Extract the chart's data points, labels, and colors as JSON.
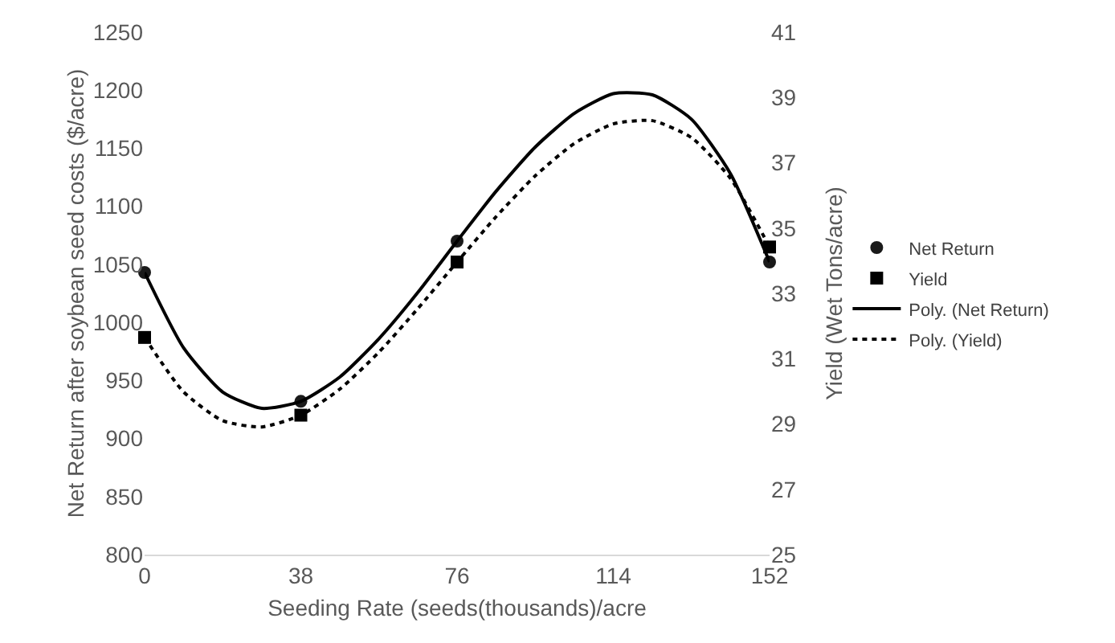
{
  "chart_data": {
    "type": "scatter",
    "xlabel": "Seeding Rate (seeds(thousands)/acre",
    "ylabel": "Net Return after soybean seed costs ($/acre)",
    "y2label": "Yield (Wet Tons/acre)",
    "xlim": [
      0,
      152
    ],
    "xticks": [
      0,
      38,
      76,
      114,
      152
    ],
    "ylim": [
      800,
      1250
    ],
    "yticks": [
      800,
      850,
      900,
      950,
      1000,
      1050,
      1100,
      1150,
      1200,
      1250
    ],
    "y2lim": [
      25,
      41
    ],
    "y2ticks": [
      25,
      27,
      29,
      31,
      33,
      35,
      37,
      39,
      41
    ],
    "grid": false,
    "legend": "right",
    "series": [
      {
        "name": "Net Return",
        "marker": "circle",
        "color": "#1a1a1a",
        "x": [
          0,
          38,
          76,
          152
        ],
        "values": [
          1043,
          932,
          1070,
          1052
        ]
      },
      {
        "name": "Yield",
        "marker": "square",
        "color": "#000000",
        "axis": "y2",
        "x": [
          0,
          38,
          76,
          152
        ],
        "values": [
          31.65,
          29.27,
          33.96,
          34.42
        ]
      },
      {
        "name": "Poly. (Net Return)",
        "type": "line",
        "marker": "none",
        "line_style": "solid",
        "color": "#000000",
        "x": [
          0,
          9.5,
          19,
          28.5,
          38,
          47.5,
          57,
          66.5,
          76,
          85.5,
          95,
          104.5,
          114,
          123.5,
          133,
          142.5,
          152
        ],
        "values": [
          1043,
          978,
          940,
          926,
          932,
          953,
          986,
          1026,
          1070,
          1113,
          1151,
          1180,
          1197,
          1196,
          1175,
          1128,
          1052
        ]
      },
      {
        "name": "Poly. (Yield)",
        "type": "line",
        "marker": "none",
        "line_style": "dotted",
        "color": "#000000",
        "axis": "y2",
        "x": [
          0,
          9.5,
          19,
          28.5,
          38,
          47.5,
          57,
          66.5,
          76,
          85.5,
          95,
          104.5,
          114,
          123.5,
          133,
          142.5,
          152
        ],
        "values": [
          31.65,
          29.98,
          29.1,
          28.91,
          29.27,
          30.07,
          31.2,
          32.54,
          33.96,
          35.35,
          36.6,
          37.59,
          38.19,
          38.29,
          37.77,
          36.52,
          34.42
        ]
      }
    ]
  }
}
